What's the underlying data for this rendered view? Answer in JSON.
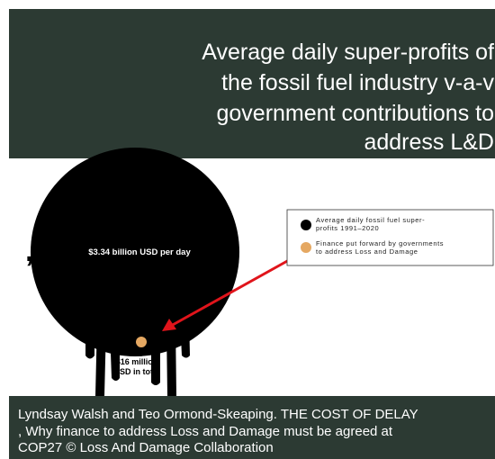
{
  "header": {
    "title_lines": [
      "Average daily super-profits of",
      "the fossil fuel industry v-a-v",
      "government contributions to",
      "address L&D"
    ]
  },
  "graphic": {
    "stray_mark": ",",
    "big_label": "$3.34 billion USD per day",
    "small_label_lines": [
      "$16 million",
      "USD in total"
    ]
  },
  "legend": {
    "items": [
      {
        "lines": [
          "Average daily fossil fuel super-",
          "profits 1991–2020"
        ]
      },
      {
        "lines": [
          "Finance put forward by governments",
          "to address Loss and Damage"
        ]
      }
    ]
  },
  "caption": {
    "lines": [
      "Lyndsay Walsh and Teo Ormond-Skeaping. THE COST OF DELAY",
      ", Why finance to address Loss and Damage must be agreed at",
      "COP27 © Loss And Damage Collaboration"
    ]
  }
}
